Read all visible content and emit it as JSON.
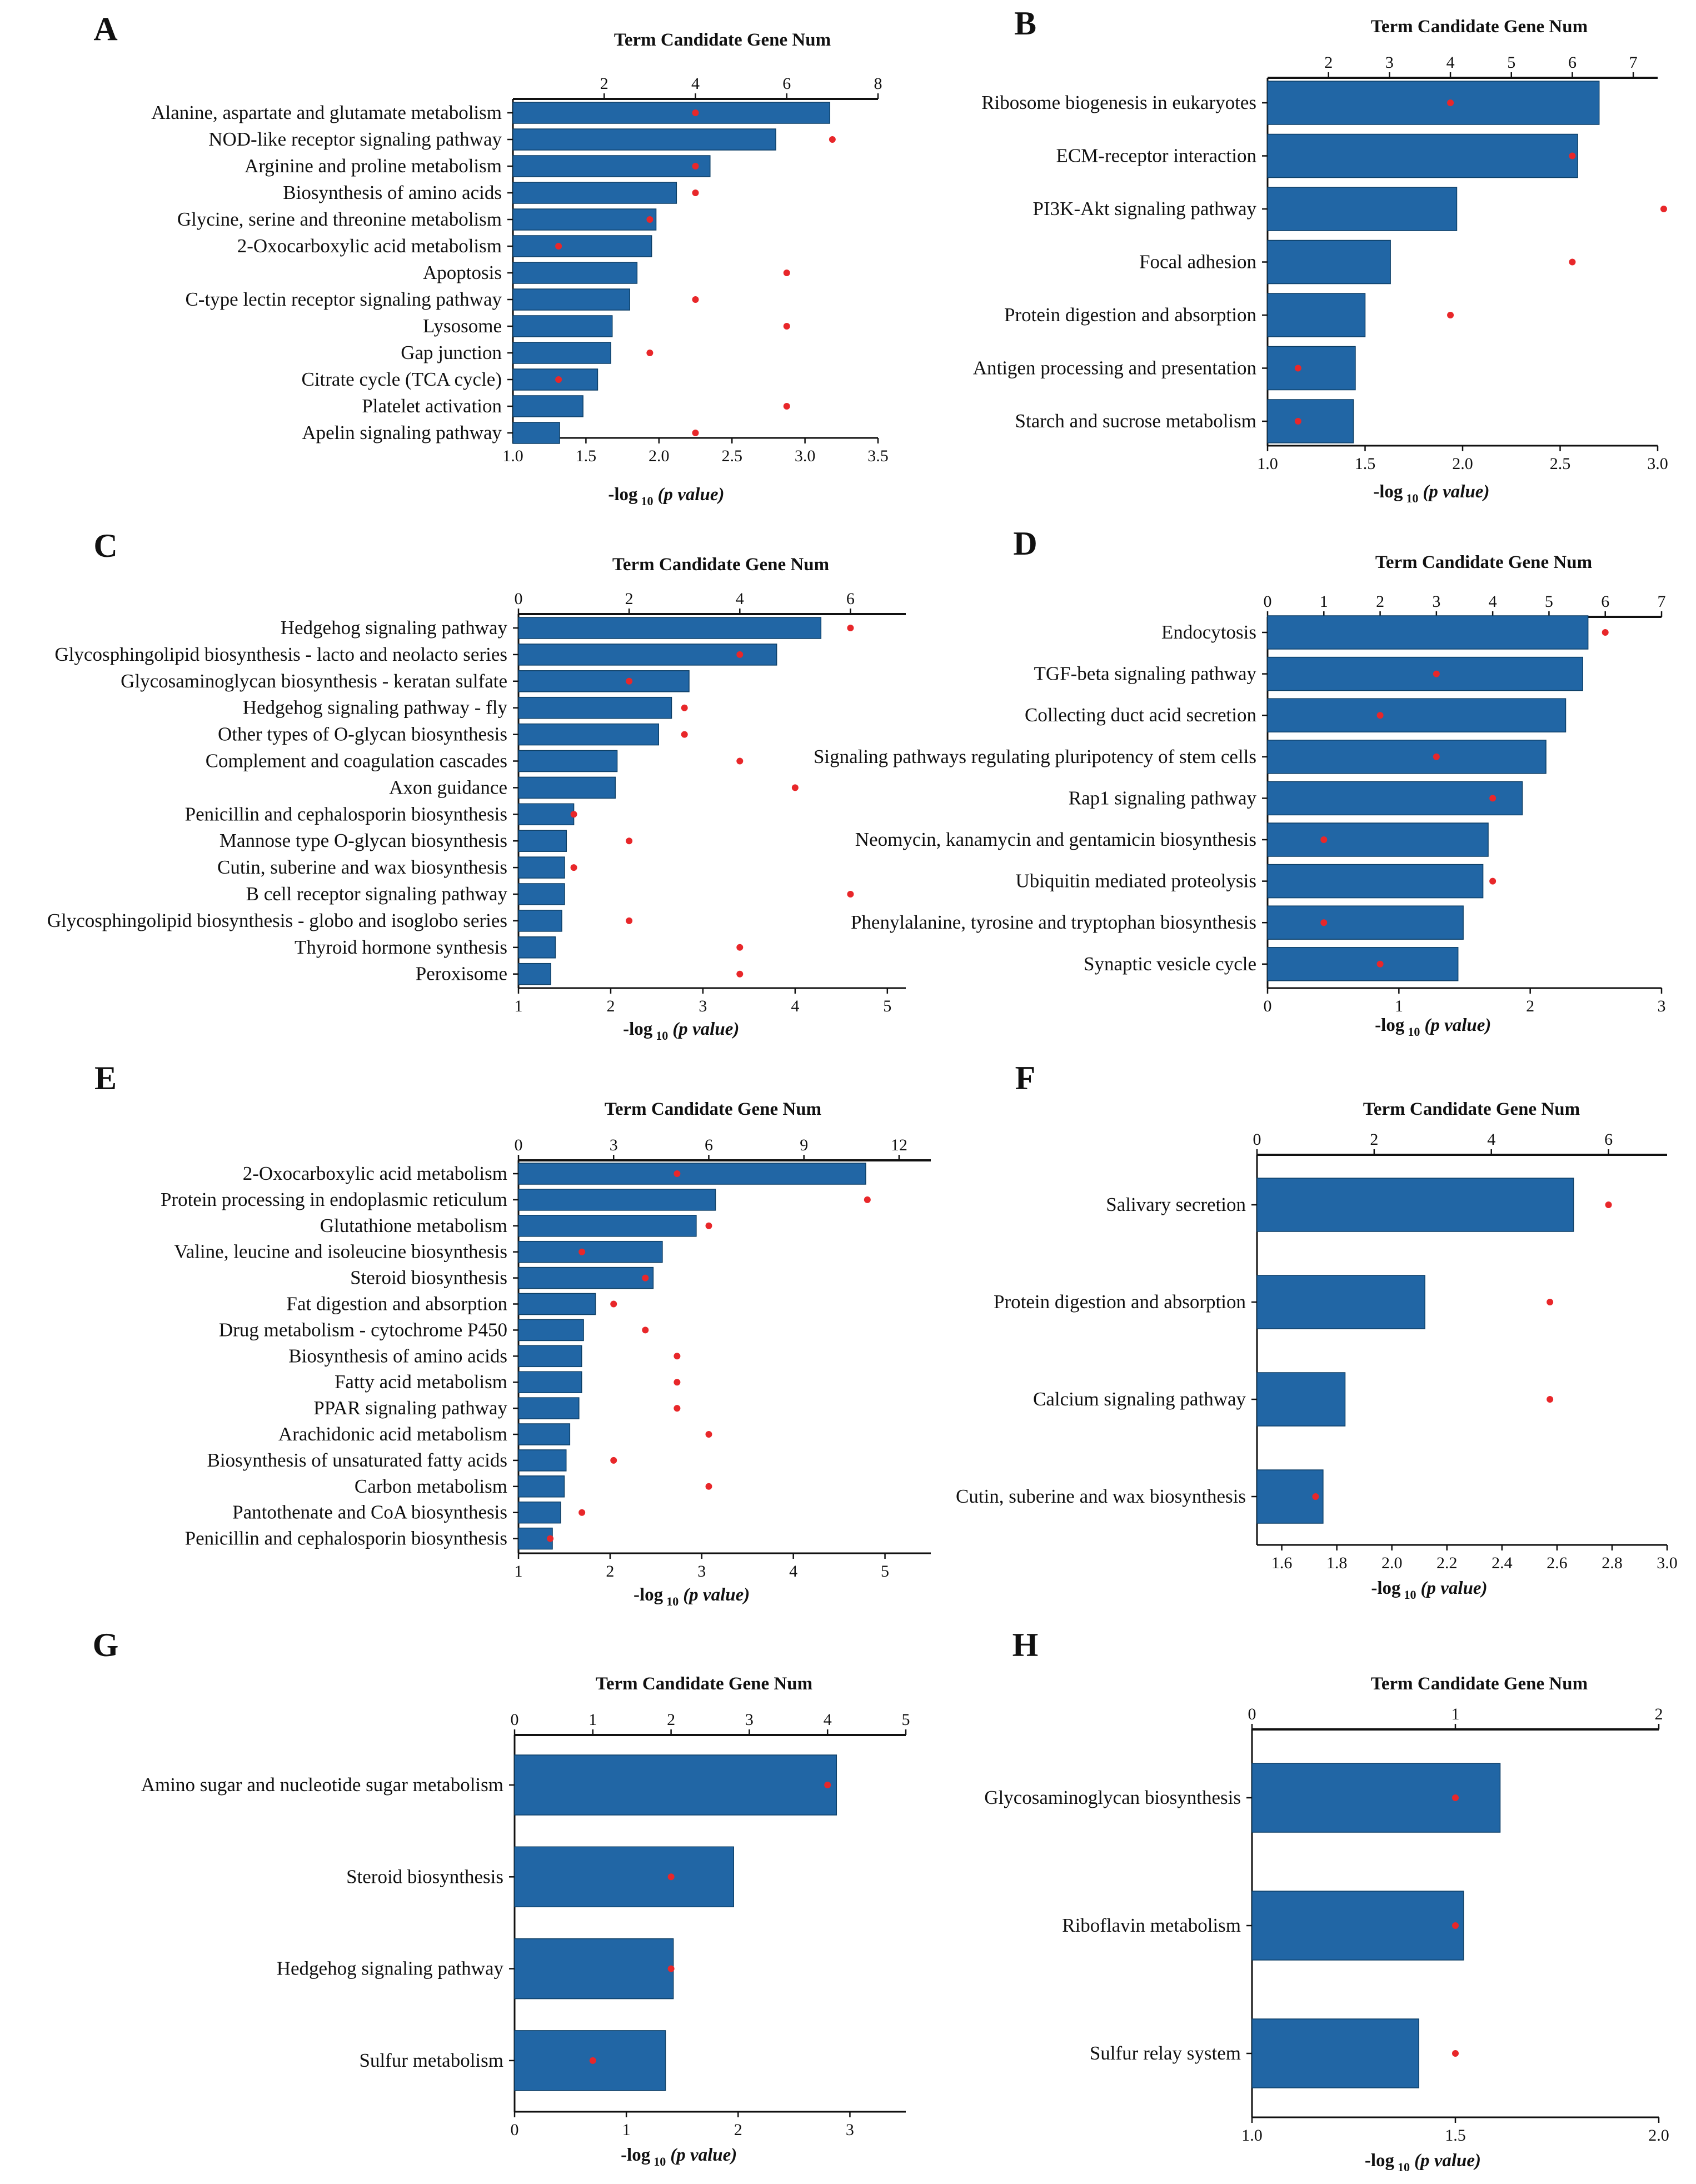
{
  "style": {
    "bar_color": "#2166a5",
    "dot_color": "#e8272a",
    "axis_color": "#111111"
  },
  "chart_data": [
    {
      "panel": "A",
      "type": "bar",
      "top_axis_title": "Term Candidate Gene Num",
      "xlabel": "-log",
      "xlabel_sub": "10",
      "xlabel_tail": "(p value)",
      "xlim": [
        1.0,
        3.5
      ],
      "xticks": [
        "1.0",
        "1.5",
        "2.0",
        "2.5",
        "3.0",
        "3.5"
      ],
      "top_lim": [
        0,
        8
      ],
      "top_ticks": [
        "2",
        "4",
        "6",
        "8"
      ],
      "categories": [
        "Alanine, aspartate and glutamate metabolism",
        "NOD-like receptor signaling pathway",
        "Arginine and proline metabolism",
        "Biosynthesis of amino acids",
        "Glycine, serine and threonine metabolism",
        "2-Oxocarboxylic acid metabolism",
        "Apoptosis",
        "C-type lectin receptor signaling pathway",
        "Lysosome",
        "Gap junction",
        "Citrate cycle (TCA cycle)",
        "Platelet activation",
        "Apelin signaling pathway"
      ],
      "values": [
        3.17,
        2.8,
        2.35,
        2.12,
        1.98,
        1.95,
        1.85,
        1.8,
        1.68,
        1.67,
        1.58,
        1.48,
        1.32
      ],
      "gene_num": [
        4,
        7,
        4,
        4,
        3,
        1,
        6,
        4,
        6,
        3,
        1,
        6,
        4
      ]
    },
    {
      "panel": "B",
      "type": "bar",
      "top_axis_title": "Term Candidate Gene Num",
      "xlabel": "-log",
      "xlabel_sub": "10",
      "xlabel_tail": "(p value)",
      "xlim": [
        1.0,
        3.0
      ],
      "xticks": [
        "1.0",
        "1.5",
        "2.0",
        "2.5",
        "3.0"
      ],
      "top_lim": [
        1,
        7.4
      ],
      "top_ticks": [
        "2",
        "3",
        "4",
        "5",
        "6",
        "7"
      ],
      "categories": [
        "Ribosome biogenesis in eukaryotes",
        "ECM-receptor interaction",
        "PI3K-Akt signaling pathway",
        "Focal adhesion",
        "Protein digestion and absorption",
        "Antigen processing and presentation",
        "Starch and sucrose metabolism"
      ],
      "values": [
        2.7,
        2.59,
        1.97,
        1.63,
        1.5,
        1.45,
        1.44
      ],
      "gene_num": [
        4,
        6,
        7.5,
        6,
        4,
        1.5,
        1.5
      ]
    },
    {
      "panel": "C",
      "type": "bar",
      "top_axis_title": "Term Candidate Gene Num",
      "xlabel": "-log",
      "xlabel_sub": "10",
      "xlabel_tail": "(p value)",
      "xlim": [
        1,
        5.2
      ],
      "xticks": [
        "1",
        "2",
        "3",
        "4",
        "5"
      ],
      "top_lim": [
        0,
        7
      ],
      "top_ticks": [
        "0",
        "2",
        "4",
        "6"
      ],
      "categories": [
        "Hedgehog signaling pathway",
        "Glycosphingolipid biosynthesis - lacto and neolacto series",
        "Glycosaminoglycan biosynthesis - keratan sulfate",
        "Hedgehog signaling pathway - fly",
        "Other types of O-glycan biosynthesis",
        "Complement and coagulation cascades",
        "Axon guidance",
        "Penicillin and cephalosporin biosynthesis",
        "Mannose type O-glycan biosynthesis",
        "Cutin, suberine and wax biosynthesis",
        "B cell receptor signaling pathway",
        "Glycosphingolipid biosynthesis - globo and isoglobo series",
        "Thyroid hormone synthesis",
        "Peroxisome"
      ],
      "values": [
        4.28,
        3.8,
        2.85,
        2.66,
        2.52,
        2.07,
        2.05,
        1.6,
        1.52,
        1.5,
        1.5,
        1.47,
        1.4,
        1.35
      ],
      "gene_num": [
        6,
        4,
        2,
        3,
        3,
        4,
        5,
        1,
        2,
        1,
        6,
        2,
        4,
        4
      ]
    },
    {
      "panel": "D",
      "type": "bar",
      "top_axis_title": "Term Candidate Gene Num",
      "xlabel": "-log",
      "xlabel_sub": "10",
      "xlabel_tail": "(p value)",
      "xlim": [
        0,
        3
      ],
      "xticks": [
        "0",
        "1",
        "2",
        "3"
      ],
      "top_lim": [
        0,
        7
      ],
      "top_ticks": [
        "0",
        "1",
        "2",
        "3",
        "4",
        "5",
        "6",
        "7"
      ],
      "categories": [
        "Endocytosis",
        "TGF-beta signaling pathway",
        "Collecting duct acid secretion",
        "Signaling pathways regulating pluripotency of stem cells",
        "Rap1 signaling pathway",
        "Neomycin, kanamycin and gentamicin biosynthesis",
        "Ubiquitin mediated proteolysis",
        "Phenylalanine, tyrosine and tryptophan biosynthesis",
        "Synaptic vesicle cycle"
      ],
      "values": [
        2.44,
        2.4,
        2.27,
        2.12,
        1.94,
        1.68,
        1.64,
        1.49,
        1.45
      ],
      "gene_num": [
        6,
        3,
        2,
        3,
        4,
        1,
        4,
        1,
        2
      ]
    },
    {
      "panel": "E",
      "type": "bar",
      "top_axis_title": "Term Candidate Gene Num",
      "xlabel": "-log",
      "xlabel_sub": "10",
      "xlabel_tail": "(p value)",
      "xlim": [
        1,
        5.5
      ],
      "xticks": [
        "1",
        "2",
        "3",
        "4",
        "5"
      ],
      "top_lim": [
        0,
        13
      ],
      "top_ticks": [
        "0",
        "3",
        "6",
        "9",
        "12"
      ],
      "categories": [
        "2-Oxocarboxylic acid metabolism",
        "Protein processing in endoplasmic reticulum",
        "Glutathione metabolism",
        "Valine, leucine and isoleucine biosynthesis",
        "Steroid biosynthesis",
        "Fat digestion and absorption",
        "Drug metabolism - cytochrome P450",
        "Biosynthesis of amino acids",
        "Fatty acid metabolism",
        "PPAR signaling pathway",
        "Arachidonic acid metabolism",
        "Biosynthesis of unsaturated fatty acids",
        "Carbon metabolism",
        "Pantothenate and CoA biosynthesis",
        "Penicillin and cephalosporin biosynthesis"
      ],
      "values": [
        4.79,
        3.15,
        2.94,
        2.57,
        2.47,
        1.84,
        1.71,
        1.69,
        1.69,
        1.66,
        1.56,
        1.52,
        1.5,
        1.46,
        1.37
      ],
      "gene_num": [
        5,
        11,
        6,
        2,
        4,
        3,
        4,
        5,
        5,
        5,
        6,
        3,
        6,
        2,
        1
      ]
    },
    {
      "panel": "F",
      "type": "bar",
      "top_axis_title": "Term Candidate Gene Num",
      "xlabel": "-log",
      "xlabel_sub": "10",
      "xlabel_tail": "(p value)",
      "xlim": [
        1.51,
        3.0
      ],
      "xticks": [
        "1.6",
        "1.8",
        "2.0",
        "2.2",
        "2.4",
        "2.6",
        "2.8",
        "3.0"
      ],
      "top_lim": [
        0,
        7
      ],
      "top_ticks": [
        "0",
        "2",
        "4",
        "6"
      ],
      "categories": [
        "Salivary secretion",
        "Protein digestion and absorption",
        "Calcium signaling pathway",
        "Cutin, suberine and wax biosynthesis"
      ],
      "values": [
        2.66,
        2.12,
        1.83,
        1.75
      ],
      "gene_num": [
        6,
        5,
        5,
        1
      ]
    },
    {
      "panel": "G",
      "type": "bar",
      "top_axis_title": "Term Candidate Gene Num",
      "xlabel": "-log",
      "xlabel_sub": "10",
      "xlabel_tail": "(p value)",
      "xlim": [
        0,
        3.5
      ],
      "xticks": [
        "0",
        "1",
        "2",
        "3"
      ],
      "top_lim": [
        0,
        5
      ],
      "top_ticks": [
        "0",
        "1",
        "2",
        "3",
        "4",
        "5"
      ],
      "categories": [
        "Amino sugar and nucleotide sugar metabolism",
        "Steroid biosynthesis",
        "Hedgehog signaling pathway",
        "Sulfur metabolism"
      ],
      "values": [
        2.88,
        1.96,
        1.42,
        1.35
      ],
      "gene_num": [
        4,
        2,
        2,
        1
      ]
    },
    {
      "panel": "H",
      "type": "bar",
      "top_axis_title": "Term Candidate Gene Num",
      "xlabel": "-log",
      "xlabel_sub": "10",
      "xlabel_tail": "(p value)",
      "xlim": [
        1.0,
        2.0
      ],
      "xticks": [
        "1.0",
        "1.5",
        "2.0"
      ],
      "top_lim": [
        0,
        2
      ],
      "top_ticks": [
        "0",
        "1",
        "2"
      ],
      "categories": [
        "Glycosaminoglycan biosynthesis",
        "Riboflavin metabolism",
        "Sulfur relay system"
      ],
      "values": [
        1.61,
        1.52,
        1.41
      ],
      "gene_num": [
        1,
        1,
        1
      ]
    }
  ]
}
